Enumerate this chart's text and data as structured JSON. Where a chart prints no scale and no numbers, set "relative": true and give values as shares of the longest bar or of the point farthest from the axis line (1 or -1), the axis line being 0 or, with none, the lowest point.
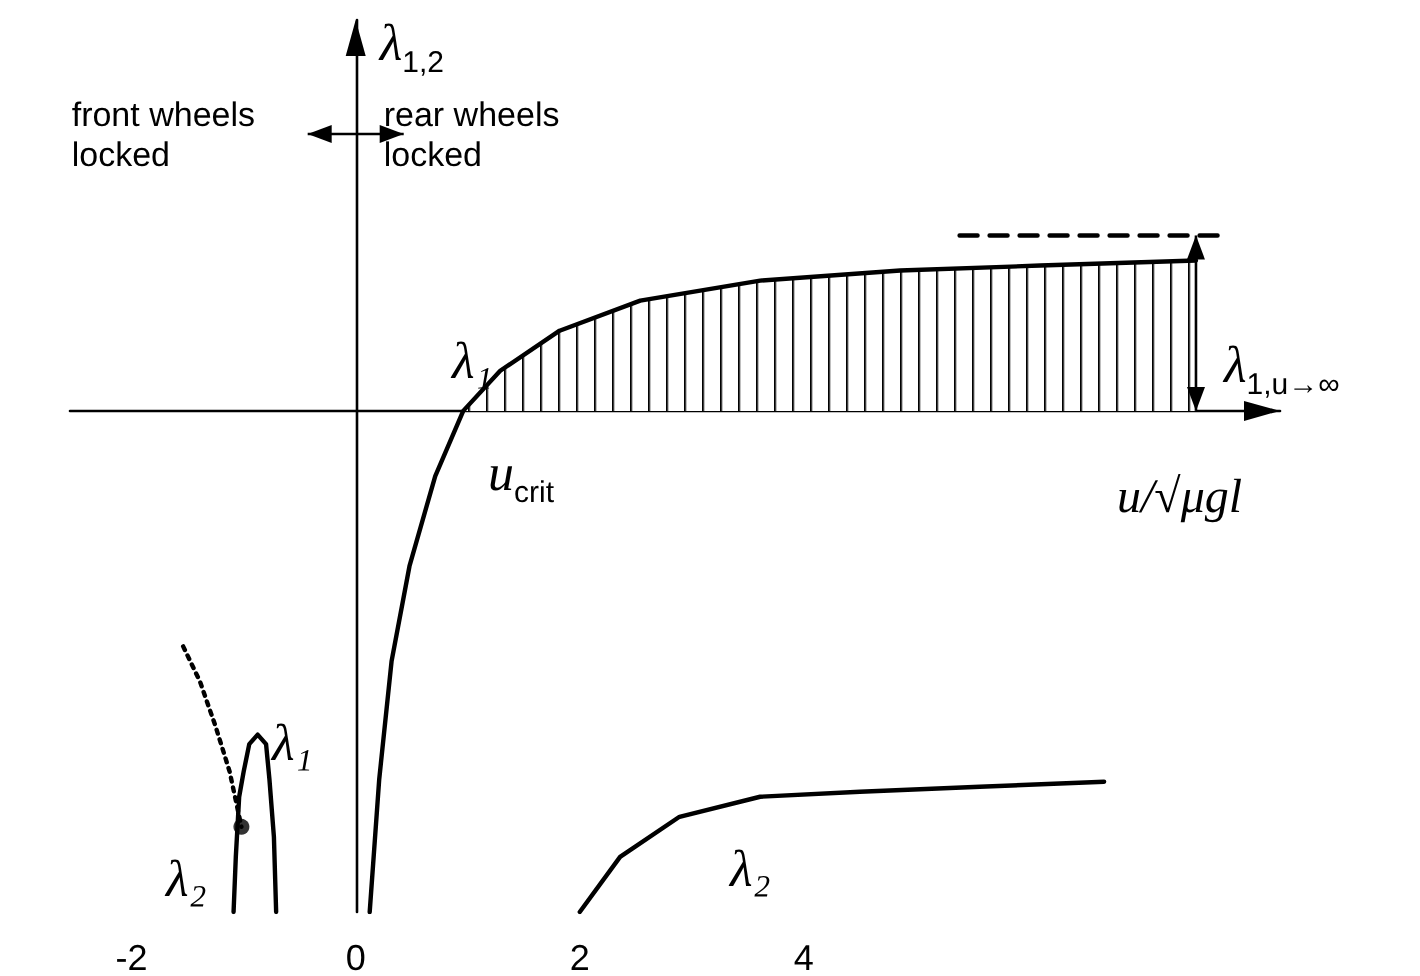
{
  "chart_data": {
    "type": "line",
    "relative": true,
    "xlabel": "u/√μgl",
    "ylabel": "λ$_{1,2}$",
    "xlim": [
      -2.55,
      8.25
    ],
    "xticks": [
      -2,
      0,
      2,
      4
    ],
    "grid": false,
    "marker": "none",
    "line_style": "solid",
    "series": [
      {
        "color": "#000000",
        "x": [
          0.125,
          0.21,
          0.32,
          0.48,
          0.71,
          0.96,
          1.29,
          1.82,
          2.54,
          3.61,
          4.86,
          6.11,
          7.5
        ],
        "values": [
          -1.0,
          -0.735,
          -0.5,
          -0.31,
          -0.13,
          0,
          0.08,
          0.16,
          0.22,
          0.26,
          0.28,
          0.29,
          0.3
        ]
      },
      {
        "color": "#000000",
        "x": [
          2.0,
          2.36,
          2.89,
          3.61,
          4.5,
          5.57,
          6.68
        ],
        "values": [
          -1.0,
          -0.89,
          -0.81,
          -0.77,
          -0.76,
          -0.75,
          -0.74
        ]
      },
      {
        "color": "#000000",
        "x": [
          -1.09,
          -1.07,
          -1.04,
          -1.0,
          -0.95,
          -0.875,
          -0.8,
          -0.77,
          -0.73,
          -0.71
        ],
        "values": [
          -1.0,
          -0.89,
          -0.77,
          -0.72,
          -0.665,
          -0.646,
          -0.665,
          -0.735,
          -0.85,
          -1.0
        ]
      },
      {
        "color": "#000000",
        "line_style": "dotted",
        "x": [
          -1.54,
          -1.39,
          -1.25,
          -1.125,
          -1.02
        ],
        "values": [
          -0.47,
          -0.54,
          -0.63,
          -0.72,
          -0.83
        ]
      },
      {
        "type": "scatter",
        "marker": "circle",
        "color": "#000000",
        "x": [
          -1.02
        ],
        "values": [
          -0.83
        ]
      },
      {
        "color": "#000000",
        "line_style": "dashed",
        "x": [
          5.39,
          7.71
        ],
        "values": [
          0.35,
          0.35
        ]
      },
      {
        "type": "area",
        "color": "#000000",
        "x": [
          0.96,
          1.29,
          1.82,
          2.54,
          3.61,
          4.86,
          6.11,
          7.5
        ],
        "values": [
          0,
          0.08,
          0.16,
          0.22,
          0.26,
          0.28,
          0.29,
          0.3
        ]
      }
    ],
    "annotations": [
      "front wheels locked",
      "rear wheels locked",
      "λ₁",
      "λ₁",
      "λ₂",
      "λ₂",
      "u$_{crit}$",
      "λ$_{1,u→∞}$"
    ]
  }
}
